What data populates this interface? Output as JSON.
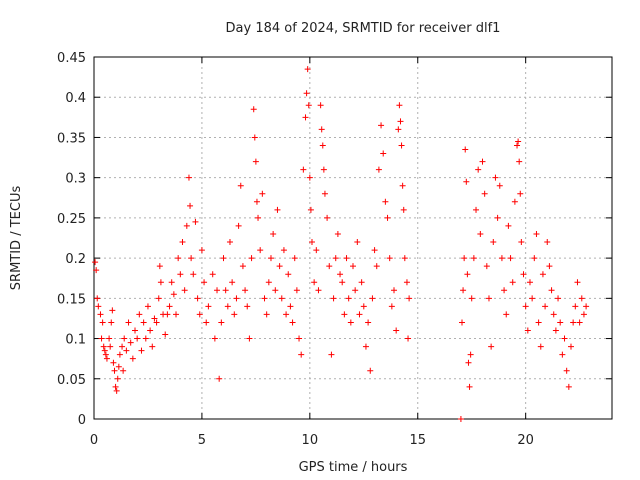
{
  "chart_data": {
    "type": "scatter",
    "title": "Day 184 of 2024, SRMTID for receiver dlf1",
    "xlabel": "GPS time / hours",
    "ylabel": "SRMTID / TECUs",
    "xlim": [
      0,
      24
    ],
    "ylim": [
      0,
      0.45
    ],
    "xticks": [
      "0",
      "5",
      "10",
      "15",
      "20"
    ],
    "yticks": [
      "0",
      "0.05",
      "0.1",
      "0.15",
      "0.2",
      "0.25",
      "0.3",
      "0.35",
      "0.4",
      "0.45"
    ],
    "grid": true,
    "marker": "+",
    "color": "#ff0000",
    "series": [
      {
        "points": [
          [
            0.05,
            0.195
          ],
          [
            0.1,
            0.185
          ],
          [
            0.15,
            0.15
          ],
          [
            0.2,
            0.14
          ],
          [
            0.3,
            0.13
          ],
          [
            0.35,
            0.1
          ],
          [
            0.4,
            0.12
          ],
          [
            0.45,
            0.09
          ],
          [
            0.5,
            0.085
          ],
          [
            0.55,
            0.08
          ],
          [
            0.6,
            0.075
          ],
          [
            0.7,
            0.1
          ],
          [
            0.75,
            0.09
          ],
          [
            0.8,
            0.12
          ],
          [
            0.85,
            0.135
          ],
          [
            0.9,
            0.07
          ],
          [
            0.95,
            0.06
          ],
          [
            1.0,
            0.04
          ],
          [
            1.05,
            0.035
          ],
          [
            1.1,
            0.05
          ],
          [
            1.15,
            0.065
          ],
          [
            1.2,
            0.08
          ],
          [
            1.3,
            0.09
          ],
          [
            1.35,
            0.06
          ],
          [
            1.4,
            0.1
          ],
          [
            1.5,
            0.085
          ],
          [
            1.6,
            0.12
          ],
          [
            1.7,
            0.095
          ],
          [
            1.8,
            0.075
          ],
          [
            1.9,
            0.11
          ],
          [
            2.0,
            0.1
          ],
          [
            2.1,
            0.13
          ],
          [
            2.2,
            0.085
          ],
          [
            2.3,
            0.12
          ],
          [
            2.4,
            0.1
          ],
          [
            2.5,
            0.14
          ],
          [
            2.6,
            0.11
          ],
          [
            2.7,
            0.09
          ],
          [
            2.8,
            0.125
          ],
          [
            2.9,
            0.12
          ],
          [
            3.0,
            0.15
          ],
          [
            3.05,
            0.19
          ],
          [
            3.1,
            0.17
          ],
          [
            3.2,
            0.13
          ],
          [
            3.3,
            0.105
          ],
          [
            3.4,
            0.13
          ],
          [
            3.5,
            0.14
          ],
          [
            3.6,
            0.17
          ],
          [
            3.7,
            0.155
          ],
          [
            3.8,
            0.13
          ],
          [
            3.9,
            0.2
          ],
          [
            4.0,
            0.18
          ],
          [
            4.1,
            0.22
          ],
          [
            4.2,
            0.16
          ],
          [
            4.3,
            0.24
          ],
          [
            4.4,
            0.3
          ],
          [
            4.45,
            0.265
          ],
          [
            4.5,
            0.2
          ],
          [
            4.6,
            0.18
          ],
          [
            4.7,
            0.245
          ],
          [
            4.8,
            0.15
          ],
          [
            4.9,
            0.13
          ],
          [
            5.0,
            0.21
          ],
          [
            5.1,
            0.17
          ],
          [
            5.2,
            0.12
          ],
          [
            5.3,
            0.14
          ],
          [
            5.5,
            0.18
          ],
          [
            5.6,
            0.1
          ],
          [
            5.7,
            0.16
          ],
          [
            5.8,
            0.05
          ],
          [
            5.9,
            0.12
          ],
          [
            6.0,
            0.2
          ],
          [
            6.1,
            0.16
          ],
          [
            6.2,
            0.14
          ],
          [
            6.3,
            0.22
          ],
          [
            6.4,
            0.17
          ],
          [
            6.5,
            0.13
          ],
          [
            6.6,
            0.15
          ],
          [
            6.7,
            0.24
          ],
          [
            6.8,
            0.29
          ],
          [
            6.9,
            0.19
          ],
          [
            7.0,
            0.16
          ],
          [
            7.1,
            0.14
          ],
          [
            7.2,
            0.1
          ],
          [
            7.3,
            0.2
          ],
          [
            7.4,
            0.385
          ],
          [
            7.45,
            0.35
          ],
          [
            7.5,
            0.32
          ],
          [
            7.55,
            0.27
          ],
          [
            7.6,
            0.25
          ],
          [
            7.7,
            0.21
          ],
          [
            7.8,
            0.28
          ],
          [
            7.9,
            0.15
          ],
          [
            8.0,
            0.13
          ],
          [
            8.1,
            0.17
          ],
          [
            8.2,
            0.2
          ],
          [
            8.3,
            0.23
          ],
          [
            8.4,
            0.16
          ],
          [
            8.5,
            0.26
          ],
          [
            8.6,
            0.19
          ],
          [
            8.7,
            0.15
          ],
          [
            8.8,
            0.21
          ],
          [
            8.9,
            0.13
          ],
          [
            9.0,
            0.18
          ],
          [
            9.1,
            0.14
          ],
          [
            9.2,
            0.12
          ],
          [
            9.3,
            0.2
          ],
          [
            9.4,
            0.16
          ],
          [
            9.5,
            0.1
          ],
          [
            9.6,
            0.08
          ],
          [
            9.7,
            0.31
          ],
          [
            9.8,
            0.375
          ],
          [
            9.85,
            0.405
          ],
          [
            9.9,
            0.435
          ],
          [
            9.95,
            0.39
          ],
          [
            10.0,
            0.3
          ],
          [
            10.05,
            0.26
          ],
          [
            10.1,
            0.22
          ],
          [
            10.2,
            0.17
          ],
          [
            10.3,
            0.21
          ],
          [
            10.4,
            0.16
          ],
          [
            10.5,
            0.39
          ],
          [
            10.55,
            0.36
          ],
          [
            10.6,
            0.34
          ],
          [
            10.65,
            0.31
          ],
          [
            10.7,
            0.28
          ],
          [
            10.8,
            0.25
          ],
          [
            10.9,
            0.19
          ],
          [
            11.0,
            0.08
          ],
          [
            11.1,
            0.15
          ],
          [
            11.2,
            0.2
          ],
          [
            11.3,
            0.23
          ],
          [
            11.4,
            0.18
          ],
          [
            11.5,
            0.17
          ],
          [
            11.6,
            0.13
          ],
          [
            11.7,
            0.2
          ],
          [
            11.8,
            0.15
          ],
          [
            11.9,
            0.12
          ],
          [
            12.0,
            0.19
          ],
          [
            12.1,
            0.16
          ],
          [
            12.2,
            0.22
          ],
          [
            12.3,
            0.13
          ],
          [
            12.4,
            0.17
          ],
          [
            12.5,
            0.14
          ],
          [
            12.6,
            0.09
          ],
          [
            12.7,
            0.12
          ],
          [
            12.8,
            0.06
          ],
          [
            12.9,
            0.15
          ],
          [
            13.0,
            0.21
          ],
          [
            13.1,
            0.19
          ],
          [
            13.2,
            0.31
          ],
          [
            13.3,
            0.365
          ],
          [
            13.4,
            0.33
          ],
          [
            13.5,
            0.27
          ],
          [
            13.6,
            0.25
          ],
          [
            13.7,
            0.2
          ],
          [
            13.8,
            0.14
          ],
          [
            13.9,
            0.16
          ],
          [
            14.0,
            0.11
          ],
          [
            14.1,
            0.36
          ],
          [
            14.15,
            0.39
          ],
          [
            14.2,
            0.37
          ],
          [
            14.25,
            0.34
          ],
          [
            14.3,
            0.29
          ],
          [
            14.35,
            0.26
          ],
          [
            14.4,
            0.2
          ],
          [
            14.5,
            0.17
          ],
          [
            14.55,
            0.1
          ],
          [
            14.6,
            0.15
          ],
          [
            17.0,
            0.0
          ],
          [
            17.05,
            0.12
          ],
          [
            17.1,
            0.16
          ],
          [
            17.15,
            0.2
          ],
          [
            17.2,
            0.335
          ],
          [
            17.25,
            0.295
          ],
          [
            17.3,
            0.18
          ],
          [
            17.35,
            0.07
          ],
          [
            17.4,
            0.04
          ],
          [
            17.45,
            0.08
          ],
          [
            17.5,
            0.15
          ],
          [
            17.6,
            0.2
          ],
          [
            17.7,
            0.26
          ],
          [
            17.8,
            0.31
          ],
          [
            17.9,
            0.23
          ],
          [
            18.0,
            0.32
          ],
          [
            18.1,
            0.28
          ],
          [
            18.2,
            0.19
          ],
          [
            18.3,
            0.15
          ],
          [
            18.4,
            0.09
          ],
          [
            18.5,
            0.22
          ],
          [
            18.6,
            0.3
          ],
          [
            18.7,
            0.25
          ],
          [
            18.8,
            0.29
          ],
          [
            18.9,
            0.2
          ],
          [
            19.0,
            0.16
          ],
          [
            19.1,
            0.13
          ],
          [
            19.2,
            0.24
          ],
          [
            19.3,
            0.2
          ],
          [
            19.4,
            0.17
          ],
          [
            19.5,
            0.27
          ],
          [
            19.6,
            0.34
          ],
          [
            19.65,
            0.345
          ],
          [
            19.7,
            0.32
          ],
          [
            19.75,
            0.28
          ],
          [
            19.8,
            0.22
          ],
          [
            19.9,
            0.18
          ],
          [
            20.0,
            0.14
          ],
          [
            20.1,
            0.11
          ],
          [
            20.2,
            0.17
          ],
          [
            20.3,
            0.15
          ],
          [
            20.4,
            0.2
          ],
          [
            20.5,
            0.23
          ],
          [
            20.6,
            0.12
          ],
          [
            20.7,
            0.09
          ],
          [
            20.8,
            0.18
          ],
          [
            20.9,
            0.14
          ],
          [
            21.0,
            0.22
          ],
          [
            21.1,
            0.19
          ],
          [
            21.2,
            0.16
          ],
          [
            21.3,
            0.13
          ],
          [
            21.4,
            0.11
          ],
          [
            21.5,
            0.15
          ],
          [
            21.6,
            0.12
          ],
          [
            21.7,
            0.08
          ],
          [
            21.8,
            0.1
          ],
          [
            21.9,
            0.06
          ],
          [
            22.0,
            0.04
          ],
          [
            22.1,
            0.09
          ],
          [
            22.2,
            0.12
          ],
          [
            22.3,
            0.14
          ],
          [
            22.4,
            0.17
          ],
          [
            22.5,
            0.12
          ],
          [
            22.6,
            0.15
          ],
          [
            22.7,
            0.13
          ],
          [
            22.8,
            0.14
          ]
        ]
      }
    ]
  }
}
